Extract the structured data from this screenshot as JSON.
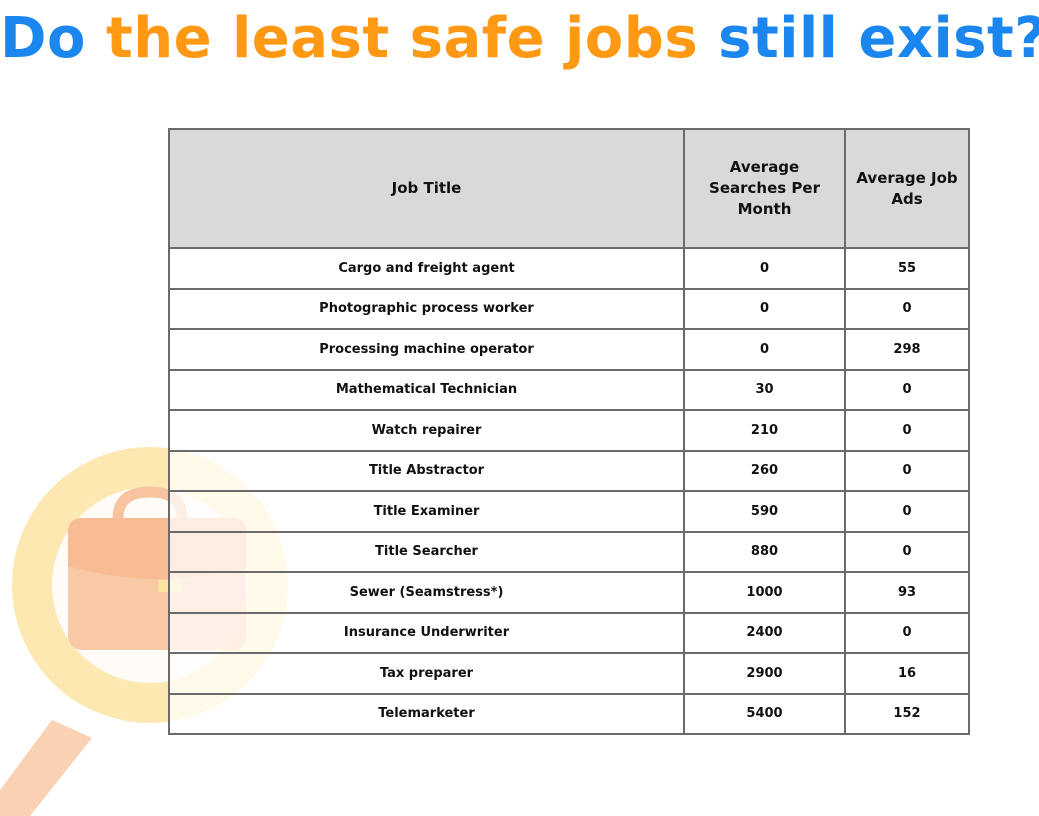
{
  "title": {
    "part1": "Do ",
    "part2": "the least safe jobs",
    "part3": " still exist?"
  },
  "colors": {
    "blue": "#1a86ee",
    "orange": "#ff9914",
    "header_bg": "#d9d9d9",
    "border": "#6b6b6b"
  },
  "chart_data": {
    "type": "table",
    "columns": [
      "Job Title",
      "Average Searches Per Month",
      "Average Job Ads"
    ],
    "rows": [
      [
        "Cargo and freight agent",
        "0",
        "55"
      ],
      [
        "Photographic process worker",
        "0",
        "0"
      ],
      [
        "Processing machine operator",
        "0",
        "298"
      ],
      [
        "Mathematical Technician",
        "30",
        "0"
      ],
      [
        "Watch repairer",
        "210",
        "0"
      ],
      [
        "Title Abstractor",
        "260",
        "0"
      ],
      [
        "Title Examiner",
        "590",
        "0"
      ],
      [
        "Title Searcher",
        "880",
        "0"
      ],
      [
        "Sewer (Seamstress*)",
        "1000",
        "93"
      ],
      [
        "Insurance Underwriter",
        "2400",
        "0"
      ],
      [
        "Tax preparer",
        "2900",
        "16"
      ],
      [
        "Telemarketer",
        "5400",
        "152"
      ]
    ]
  },
  "decoration": {
    "icon": "magnifier-briefcase-icon"
  }
}
